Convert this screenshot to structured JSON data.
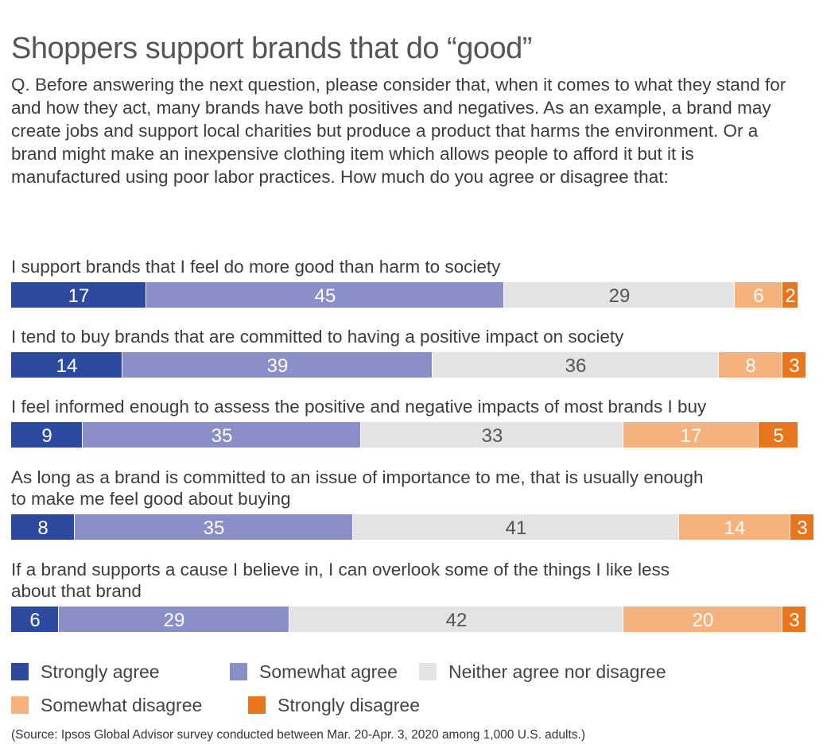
{
  "title": "Shoppers support brands that do “good”",
  "question": "Q. Before answering the next question, please consider that, when it comes to what they stand for and how they act, many brands have both positives and negatives. As an example, a brand may create jobs and support local charities but produce a product that harms the environment. Or a brand might make an inexpensive clothing item which allows people to afford it but it is manufactured using poor labor practices. How much do you agree or disagree that:",
  "source": "(Source: Ipsos Global Advisor survey conducted between Mar. 20-Apr. 3, 2020 among 1,000 U.S. adults.)",
  "legend": [
    {
      "label": "Strongly agree",
      "color": "#2e4a9e"
    },
    {
      "label": "Somewhat agree",
      "color": "#8b8fc8"
    },
    {
      "label": "Neither agree nor disagree",
      "color": "#e3e3e3"
    },
    {
      "label": "Somewhat disagree",
      "color": "#f5b27c"
    },
    {
      "label": "Strongly disagree",
      "color": "#e8761e"
    }
  ],
  "chart_data": {
    "type": "bar",
    "orientation": "horizontal-stacked",
    "categories": [
      [
        "I support brands that I feel do more good than harm to society"
      ],
      [
        "I tend to buy brands that are committed to having a positive impact on society"
      ],
      [
        "I feel informed enough to assess the positive and negative impacts of most brands I buy"
      ],
      [
        "As long as a brand is committed to an issue of importance to me, that is usually enough",
        "to make me feel good about buying"
      ],
      [
        "If a brand supports a cause I believe in, I can overlook some of the things I like less",
        "about that brand"
      ]
    ],
    "series": [
      {
        "name": "Strongly agree",
        "color": "#2e4a9e",
        "label_color": "#ffffff",
        "values": [
          17,
          14,
          9,
          8,
          6
        ]
      },
      {
        "name": "Somewhat agree",
        "color": "#8b8fc8",
        "label_color": "#ffffff",
        "values": [
          45,
          39,
          35,
          35,
          29
        ]
      },
      {
        "name": "Neither agree nor disagree",
        "color": "#e3e3e3",
        "label_color": "#555555",
        "values": [
          29,
          36,
          33,
          41,
          42
        ]
      },
      {
        "name": "Somewhat disagree",
        "color": "#f5b27c",
        "label_color": "#ffffff",
        "values": [
          6,
          8,
          17,
          14,
          20
        ]
      },
      {
        "name": "Strongly disagree",
        "color": "#e8761e",
        "label_color": "#ffffff",
        "values": [
          2,
          3,
          5,
          3,
          3
        ]
      }
    ],
    "xlim": [
      0,
      100
    ],
    "grid": false,
    "legend_position": "bottom"
  }
}
